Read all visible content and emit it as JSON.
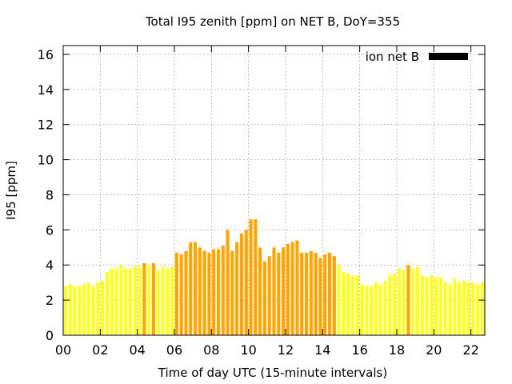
{
  "chart_data": {
    "type": "bar",
    "title": "Total I95 zenith [ppm] on NET B, DoY=355",
    "xlabel": "Time of day UTC (15-minute intervals)",
    "ylabel": "I95 [ppm]",
    "xlim": [
      0,
      22.75
    ],
    "ylim": [
      0,
      16.5
    ],
    "xticks": [
      "00",
      "02",
      "04",
      "06",
      "08",
      "10",
      "12",
      "14",
      "16",
      "18",
      "20",
      "22"
    ],
    "xtick_values": [
      0,
      2,
      4,
      6,
      8,
      10,
      12,
      14,
      16,
      18,
      20,
      22
    ],
    "yticks": [
      0,
      2,
      4,
      6,
      8,
      10,
      12,
      14,
      16
    ],
    "grid": true,
    "legend_position": "top-right",
    "colors": {
      "low": "#ffff20",
      "high": "#ffa500",
      "legend_swatch": "#000000"
    },
    "bar_interval_hours": 0.25,
    "series": [
      {
        "name": "ion net B",
        "x_start": 0,
        "values": [
          2.8,
          2.9,
          2.8,
          2.8,
          2.9,
          3.0,
          2.8,
          3.0,
          3.1,
          3.6,
          3.8,
          3.8,
          4.0,
          3.8,
          3.8,
          3.9,
          3.9,
          4.1,
          4.0,
          4.1,
          3.7,
          3.9,
          3.8,
          3.9,
          4.7,
          4.6,
          4.8,
          5.3,
          5.3,
          5.0,
          4.8,
          4.7,
          4.9,
          4.9,
          5.1,
          6.0,
          4.8,
          5.3,
          5.8,
          6.0,
          6.6,
          6.6,
          5.0,
          4.2,
          4.5,
          5.0,
          4.7,
          5.0,
          5.2,
          5.3,
          5.4,
          4.7,
          4.7,
          4.8,
          4.7,
          4.4,
          4.6,
          4.7,
          4.5,
          4.0,
          3.6,
          3.5,
          3.4,
          3.4,
          2.9,
          2.8,
          2.8,
          3.0,
          2.9,
          3.1,
          3.4,
          3.5,
          3.8,
          3.7,
          4.0,
          3.8,
          3.9,
          3.4,
          3.3,
          3.4,
          3.3,
          3.3,
          3.0,
          2.9,
          3.2,
          3.0,
          3.1,
          3.0,
          3.0,
          2.9,
          3.0
        ],
        "levels": [
          "low",
          "low",
          "low",
          "low",
          "low",
          "low",
          "low",
          "low",
          "low",
          "low",
          "low",
          "low",
          "low",
          "low",
          "low",
          "low",
          "low",
          "high",
          "low",
          "high",
          "low",
          "low",
          "low",
          "low",
          "high",
          "high",
          "high",
          "high",
          "high",
          "high",
          "high",
          "high",
          "high",
          "high",
          "high",
          "high",
          "high",
          "high",
          "high",
          "high",
          "high",
          "high",
          "high",
          "high",
          "high",
          "high",
          "high",
          "high",
          "high",
          "high",
          "high",
          "high",
          "high",
          "high",
          "high",
          "high",
          "high",
          "high",
          "high",
          "low",
          "low",
          "low",
          "low",
          "low",
          "low",
          "low",
          "low",
          "low",
          "low",
          "low",
          "low",
          "low",
          "low",
          "low",
          "high",
          "low",
          "low",
          "low",
          "low",
          "low",
          "low",
          "low",
          "low",
          "low",
          "low",
          "low",
          "low",
          "low",
          "low",
          "low",
          "low"
        ]
      }
    ]
  }
}
